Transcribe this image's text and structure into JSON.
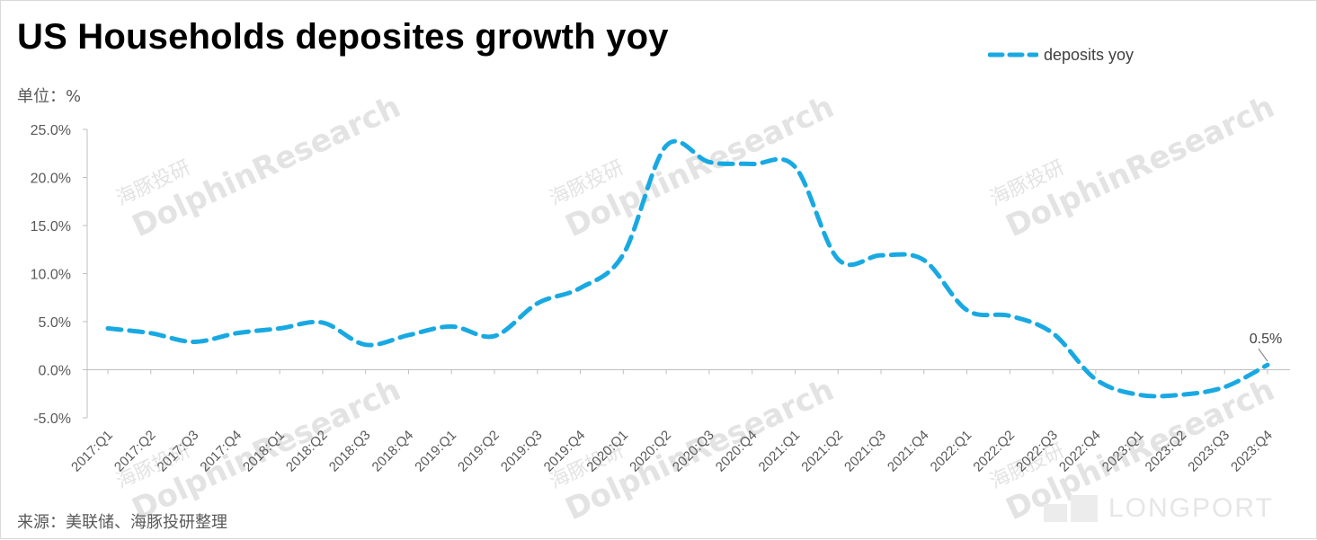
{
  "title": "US Households deposites growth yoy",
  "unit_label": "单位：%",
  "source": "来源：美联储、海豚投研整理",
  "legend": {
    "label": "deposits yoy",
    "position": "top-right"
  },
  "watermark": {
    "cn": "海豚投研",
    "en": "DolphinResearch"
  },
  "brand": "LONGPORT",
  "colors": {
    "series": "#19a9e2",
    "axis": "#bfbfbf",
    "tick_text": "#595959",
    "annotation": "#404040"
  },
  "chart_data": {
    "type": "line",
    "title": "US Households deposites growth yoy",
    "ylabel": "单位：%",
    "ylim": [
      -5,
      25
    ],
    "yticks": [
      {
        "value": 25,
        "label": "25.0%"
      },
      {
        "value": 20,
        "label": "20.0%"
      },
      {
        "value": 15,
        "label": "15.0%"
      },
      {
        "value": 10,
        "label": "10.0%"
      },
      {
        "value": 5,
        "label": "5.0%"
      },
      {
        "value": 0,
        "label": "0.0%"
      },
      {
        "value": -5,
        "label": "-5.0%"
      }
    ],
    "grid": false,
    "legend": "top-right",
    "categories": [
      "2017:Q1",
      "2017:Q2",
      "2017:Q3",
      "2017:Q4",
      "2018:Q1",
      "2018:Q2",
      "2018:Q3",
      "2018:Q4",
      "2019:Q1",
      "2019:Q2",
      "2019:Q3",
      "2019:Q4",
      "2020:Q1",
      "2020:Q2",
      "2020:Q3",
      "2020:Q4",
      "2021:Q1",
      "2021:Q2",
      "2021:Q3",
      "2021:Q4",
      "2022:Q1",
      "2022:Q2",
      "2022:Q3",
      "2022:Q4",
      "2023:Q1",
      "2023:Q2",
      "2023:Q3",
      "2023:Q4"
    ],
    "series": [
      {
        "name": "deposits yoy",
        "style": "dashed",
        "values": [
          4.3,
          3.8,
          2.9,
          3.8,
          4.3,
          4.9,
          2.6,
          3.6,
          4.5,
          3.5,
          6.9,
          8.5,
          12.0,
          23.3,
          21.6,
          21.4,
          21.1,
          11.5,
          11.9,
          11.4,
          6.2,
          5.6,
          3.8,
          -1.0,
          -2.6,
          -2.6,
          -1.8,
          0.5
        ]
      }
    ],
    "annotations": [
      {
        "category": "2023:Q4",
        "value": 0.5,
        "label": "0.5%"
      }
    ]
  }
}
